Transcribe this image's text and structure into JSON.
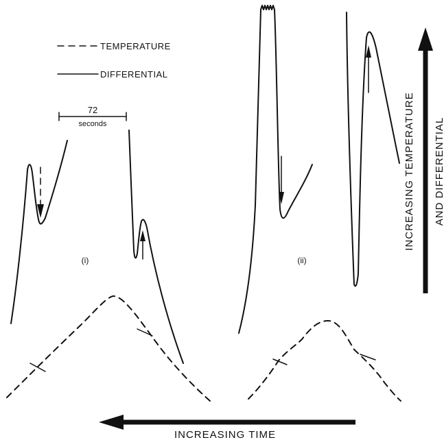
{
  "legend": {
    "temperature_label": "TEMPERATURE",
    "differential_label": "DIFFERENTIAL"
  },
  "scale_bar": {
    "value": "72",
    "unit": "seconds"
  },
  "panels": {
    "first_label": "(i)",
    "second_label": "(ii)"
  },
  "axes": {
    "vertical_line1": "INCREASING TEMPERATURE",
    "vertical_line2": "AND DIFFERENTIAL",
    "horizontal": "INCREASING TIME"
  },
  "colors": {
    "ink": "#111111",
    "background": "#ffffff"
  }
}
